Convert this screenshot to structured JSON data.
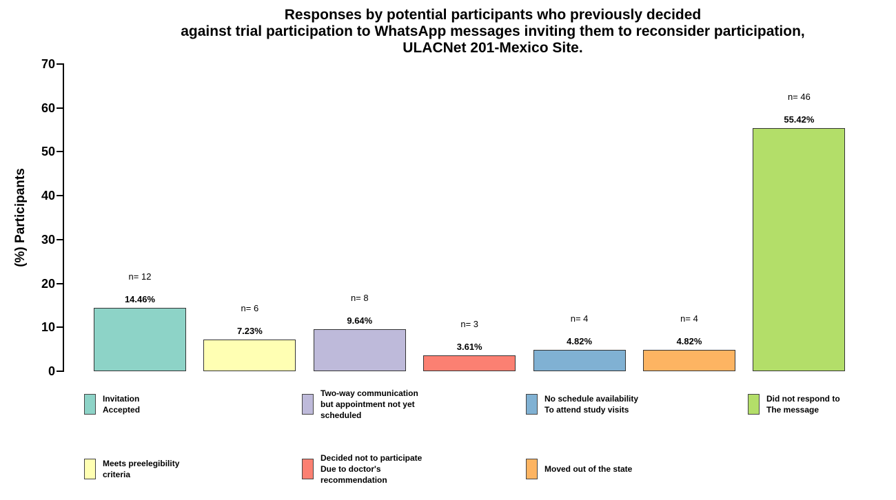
{
  "chart_data": {
    "type": "bar",
    "title": "Responses by potential participants who previously decided against trial participation to WhatsApp messages inviting them to reconsider participation, ULACNet 201-Mexico Site.",
    "title_lines": [
      "Responses by potential participants who previously decided",
      "against trial participation to WhatsApp messages inviting them to reconsider participation,",
      "ULACNet 201-Mexico Site."
    ],
    "ylabel": "(%) Participants",
    "xlabel": "",
    "ylim": [
      0,
      70
    ],
    "yticks": [
      0,
      10,
      20,
      30,
      40,
      50,
      60,
      70
    ],
    "grid": false,
    "legend_position": "bottom",
    "categories": [
      "Invitation Accepted",
      "Meets preelegibility criteria",
      "Two-way communication but appointment not yet scheduled",
      "Decided not to participate Due to doctor's recommendation",
      "No schedule availability To attend study visits",
      "Moved out of the state",
      "Did not respond to The message"
    ],
    "values": [
      14.46,
      7.23,
      9.64,
      3.61,
      4.82,
      4.82,
      55.42
    ],
    "counts": [
      12,
      6,
      8,
      3,
      4,
      4,
      46
    ],
    "percent_labels": [
      "14.46%",
      "7.23%",
      "9.64%",
      "3.61%",
      "4.82%",
      "4.82%",
      "55.42%"
    ],
    "count_labels": [
      "n= 12",
      "n= 6",
      "n= 8",
      "n= 3",
      "n= 4",
      "n= 4",
      "n= 46"
    ],
    "colors": [
      "#8DD3C7",
      "#FFFFB3",
      "#BEBADA",
      "#FB8072",
      "#80B1D3",
      "#FDB462",
      "#B3DE69"
    ],
    "legend": {
      "columns": 4,
      "entries": [
        {
          "color": "#8DD3C7",
          "label_lines": [
            "Invitation",
            "Accepted"
          ]
        },
        {
          "color": "#FFFFB3",
          "label_lines": [
            "Meets preelegibility",
            "criteria"
          ]
        },
        {
          "color": "#BEBADA",
          "label_lines": [
            "Two-way communication",
            "but appointment not yet",
            "scheduled"
          ]
        },
        {
          "color": "#FB8072",
          "label_lines": [
            "Decided not to participate",
            "Due to doctor's",
            "recommendation"
          ]
        },
        {
          "color": "#80B1D3",
          "label_lines": [
            "No schedule availability",
            "To attend study visits"
          ]
        },
        {
          "color": "#FDB462",
          "label_lines": [
            "Moved out of the state"
          ]
        },
        {
          "color": "#B3DE69",
          "label_lines": [
            "Did not respond to",
            "The message"
          ]
        }
      ]
    }
  }
}
